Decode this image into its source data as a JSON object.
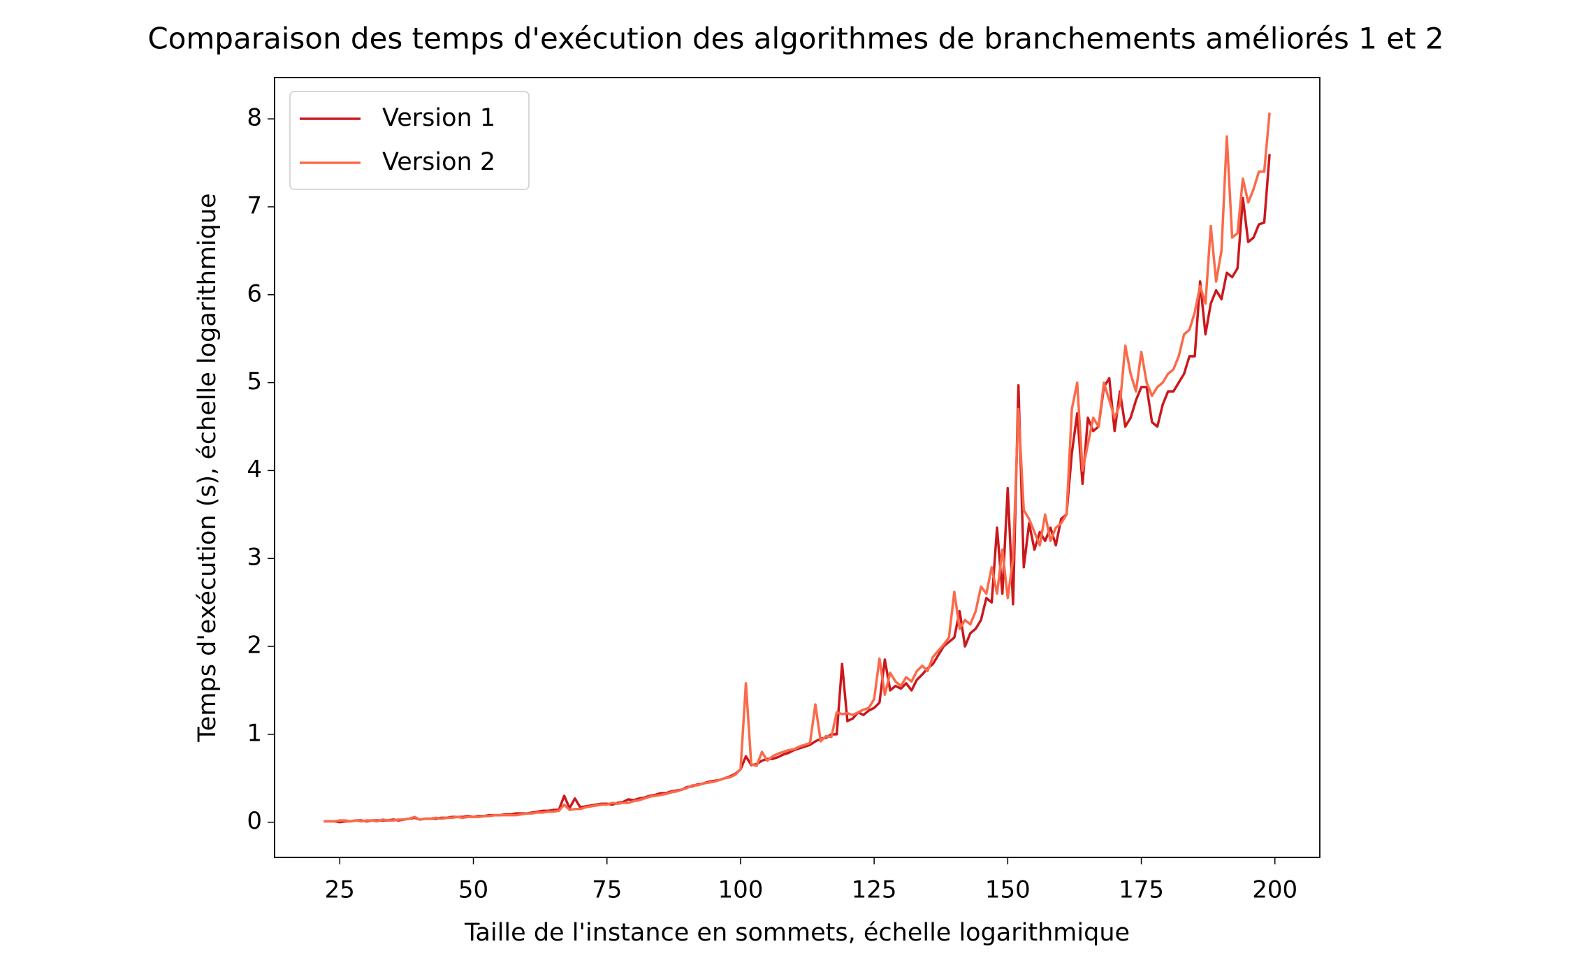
{
  "chart_data": {
    "type": "line",
    "title": "Comparaison des temps d'exécution des algorithmes de branchements améliorés 1 et 2",
    "xlabel": "Taille de l'instance en sommets, échelle logarithmique",
    "ylabel": "Temps d'exécution (s), échelle logarithmique",
    "legend": "upper left",
    "xlim": [
      12.8,
      208.4
    ],
    "ylim": [
      -0.4,
      8.47
    ],
    "xticks": [
      25,
      50,
      75,
      100,
      125,
      150,
      175,
      200
    ],
    "yticks": [
      0,
      1,
      2,
      3,
      4,
      5,
      6,
      7,
      8
    ],
    "x": [
      22,
      23,
      24,
      25,
      26,
      27,
      28,
      29,
      30,
      31,
      32,
      33,
      34,
      35,
      36,
      37,
      38,
      39,
      40,
      41,
      42,
      43,
      44,
      45,
      46,
      47,
      48,
      49,
      50,
      51,
      52,
      53,
      54,
      55,
      56,
      57,
      58,
      59,
      60,
      61,
      62,
      63,
      64,
      65,
      66,
      67,
      68,
      69,
      70,
      71,
      72,
      73,
      74,
      75,
      76,
      77,
      78,
      79,
      80,
      81,
      82,
      83,
      84,
      85,
      86,
      87,
      88,
      89,
      90,
      91,
      92,
      93,
      94,
      95,
      96,
      97,
      98,
      99,
      100,
      101,
      102,
      103,
      104,
      105,
      106,
      107,
      108,
      109,
      110,
      111,
      112,
      113,
      114,
      115,
      116,
      117,
      118,
      119,
      120,
      121,
      122,
      123,
      124,
      125,
      126,
      127,
      128,
      129,
      130,
      131,
      132,
      133,
      134,
      135,
      136,
      137,
      138,
      139,
      140,
      141,
      142,
      143,
      144,
      145,
      146,
      147,
      148,
      149,
      150,
      151,
      152,
      153,
      154,
      155,
      156,
      157,
      158,
      159,
      160,
      161,
      162,
      163,
      164,
      165,
      166,
      167,
      168,
      169,
      170,
      171,
      172,
      173,
      174,
      175,
      176,
      177,
      178,
      179,
      180,
      181,
      182,
      183,
      184,
      185,
      186,
      187,
      188,
      189,
      190,
      191,
      192,
      193,
      194,
      195,
      196,
      197,
      198,
      199
    ],
    "series": [
      {
        "name": "Version 1",
        "color": "#cb181d",
        "values": [
          0.01,
          0.01,
          0.01,
          0.0,
          0.01,
          0.01,
          0.02,
          0.02,
          0.01,
          0.02,
          0.02,
          0.02,
          0.02,
          0.03,
          0.02,
          0.03,
          0.04,
          0.05,
          0.03,
          0.04,
          0.04,
          0.04,
          0.05,
          0.05,
          0.06,
          0.06,
          0.06,
          0.07,
          0.06,
          0.07,
          0.07,
          0.08,
          0.08,
          0.08,
          0.09,
          0.09,
          0.1,
          0.1,
          0.1,
          0.11,
          0.12,
          0.13,
          0.13,
          0.14,
          0.14,
          0.3,
          0.16,
          0.27,
          0.17,
          0.18,
          0.19,
          0.2,
          0.21,
          0.21,
          0.2,
          0.22,
          0.23,
          0.26,
          0.25,
          0.27,
          0.28,
          0.3,
          0.31,
          0.33,
          0.33,
          0.35,
          0.36,
          0.37,
          0.4,
          0.41,
          0.43,
          0.44,
          0.46,
          0.47,
          0.48,
          0.5,
          0.52,
          0.55,
          0.6,
          0.75,
          0.65,
          0.66,
          0.7,
          0.72,
          0.72,
          0.74,
          0.77,
          0.79,
          0.82,
          0.84,
          0.86,
          0.88,
          0.92,
          0.95,
          0.96,
          1.0,
          1.0,
          1.8,
          1.15,
          1.18,
          1.25,
          1.22,
          1.27,
          1.3,
          1.36,
          1.85,
          1.5,
          1.55,
          1.52,
          1.58,
          1.5,
          1.62,
          1.68,
          1.75,
          1.8,
          1.9,
          2.0,
          2.05,
          2.1,
          2.4,
          2.0,
          2.15,
          2.2,
          2.3,
          2.55,
          2.5,
          3.35,
          2.6,
          3.8,
          2.48,
          4.97,
          2.9,
          3.4,
          3.1,
          3.3,
          3.2,
          3.35,
          3.15,
          3.45,
          3.5,
          4.2,
          4.65,
          3.85,
          4.6,
          4.45,
          4.5,
          4.95,
          5.05,
          4.45,
          4.9,
          4.5,
          4.6,
          4.8,
          4.95,
          4.95,
          4.55,
          4.5,
          4.75,
          4.9,
          4.9,
          5.0,
          5.1,
          5.3,
          5.3,
          6.15,
          5.55,
          5.9,
          6.05,
          5.95,
          6.25,
          6.2,
          6.3,
          7.1,
          6.6,
          6.65,
          6.8,
          6.82,
          7.6
        ]
      },
      {
        "name": "Version 2",
        "color": "#fb6a4a",
        "values": [
          0.01,
          0.01,
          0.01,
          0.02,
          0.02,
          0.01,
          0.02,
          0.01,
          0.02,
          0.02,
          0.01,
          0.03,
          0.02,
          0.02,
          0.03,
          0.03,
          0.04,
          0.06,
          0.03,
          0.04,
          0.04,
          0.05,
          0.04,
          0.05,
          0.05,
          0.06,
          0.05,
          0.06,
          0.06,
          0.06,
          0.07,
          0.07,
          0.08,
          0.08,
          0.08,
          0.08,
          0.08,
          0.09,
          0.1,
          0.1,
          0.11,
          0.11,
          0.12,
          0.12,
          0.13,
          0.2,
          0.14,
          0.15,
          0.15,
          0.17,
          0.18,
          0.19,
          0.2,
          0.2,
          0.22,
          0.21,
          0.22,
          0.22,
          0.24,
          0.25,
          0.27,
          0.29,
          0.3,
          0.31,
          0.32,
          0.34,
          0.35,
          0.37,
          0.39,
          0.42,
          0.42,
          0.44,
          0.45,
          0.46,
          0.48,
          0.5,
          0.51,
          0.54,
          0.6,
          1.58,
          0.66,
          0.64,
          0.8,
          0.7,
          0.75,
          0.78,
          0.8,
          0.82,
          0.83,
          0.86,
          0.88,
          0.9,
          1.34,
          0.92,
          0.98,
          0.97,
          1.25,
          1.23,
          1.24,
          1.22,
          1.25,
          1.28,
          1.3,
          1.4,
          1.86,
          1.45,
          1.7,
          1.6,
          1.55,
          1.65,
          1.6,
          1.72,
          1.78,
          1.72,
          1.88,
          1.95,
          2.02,
          2.1,
          2.62,
          2.2,
          2.3,
          2.25,
          2.4,
          2.68,
          2.6,
          2.9,
          2.6,
          3.1,
          2.55,
          3.0,
          4.7,
          3.55,
          3.45,
          3.3,
          3.15,
          3.5,
          3.2,
          3.35,
          3.4,
          3.5,
          4.7,
          5.0,
          4.0,
          4.3,
          4.6,
          4.5,
          5.0,
          4.8,
          4.6,
          4.75,
          5.42,
          5.1,
          4.9,
          5.35,
          5.0,
          4.85,
          4.95,
          5.0,
          5.1,
          5.15,
          5.3,
          5.55,
          5.6,
          5.8,
          6.1,
          5.9,
          6.78,
          6.15,
          6.5,
          7.8,
          6.65,
          6.7,
          7.32,
          7.05,
          7.2,
          7.4,
          7.4,
          8.07
        ]
      }
    ]
  }
}
